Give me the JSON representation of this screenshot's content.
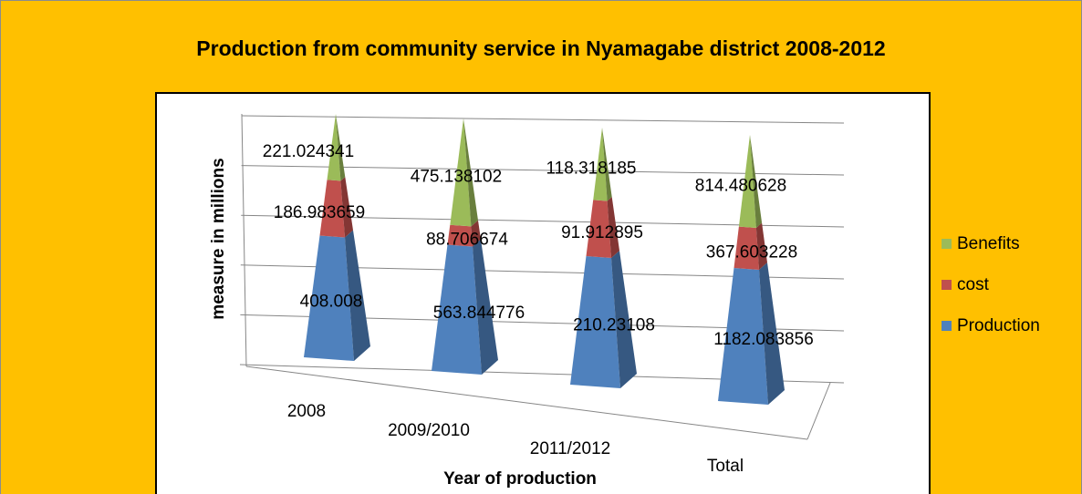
{
  "chart_data": {
    "type": "pyramid",
    "title": "Production from community service in Nyamagabe district 2008-2012",
    "y_label": "measure in millions",
    "x_label": "Year of production",
    "categories": [
      "2008",
      "2009/2010",
      "2011/2012",
      "Total"
    ],
    "series": [
      {
        "name": "Production",
        "color": "#4f81bd",
        "values": [
          408.008,
          563.844776,
          210.23108,
          1182.083856
        ]
      },
      {
        "name": "cost",
        "color": "#c0504d",
        "values": [
          186.983659,
          88.706674,
          91.912895,
          367.603228
        ]
      },
      {
        "name": "Benefits",
        "color": "#9bbb59",
        "values": [
          221.024341,
          475.138102,
          118.318185,
          814.480628
        ]
      }
    ],
    "stacking": "percent",
    "ylim": [
      0,
      100
    ],
    "yticks": [
      0,
      20,
      40,
      60,
      80,
      100
    ],
    "show_tick_labels": false,
    "grid": true,
    "legend": "right"
  }
}
